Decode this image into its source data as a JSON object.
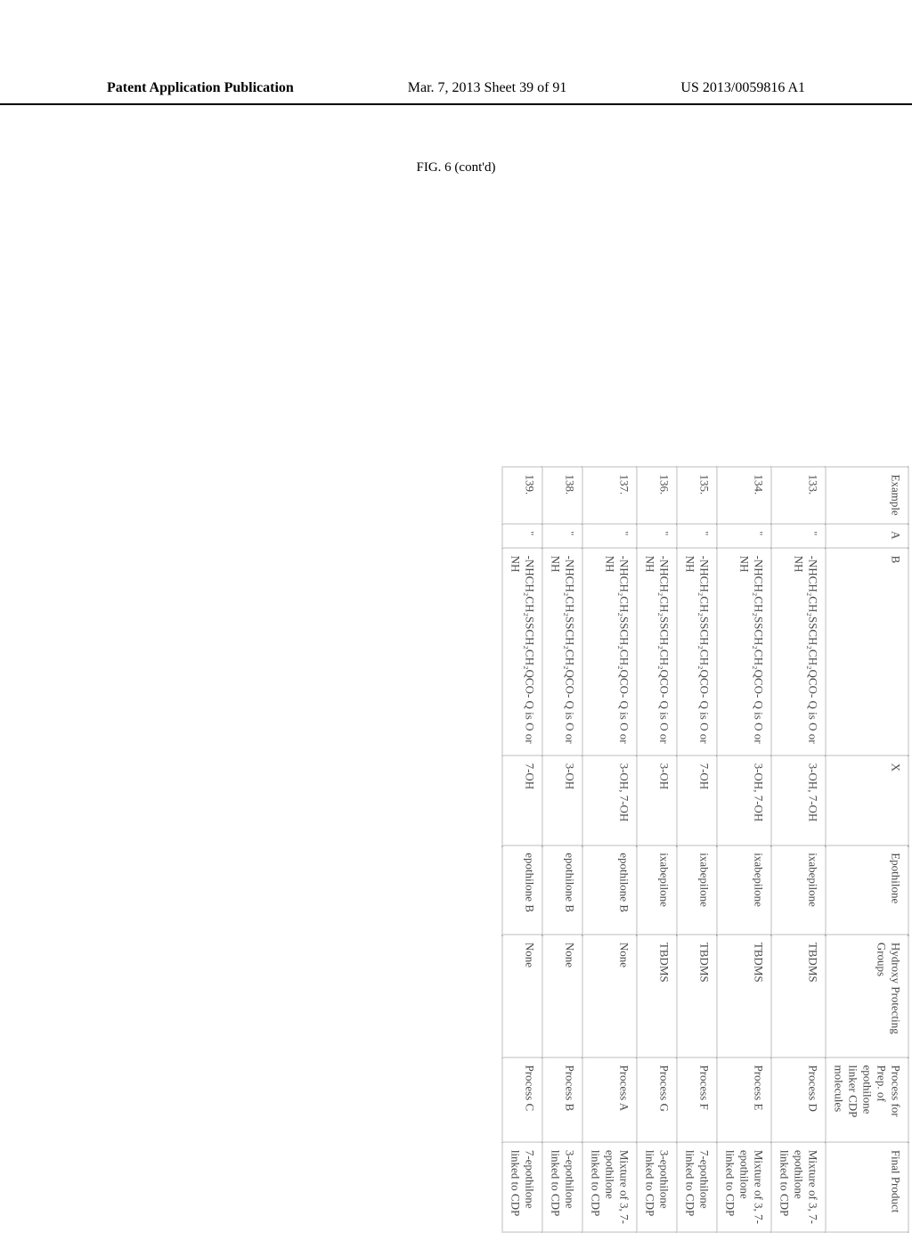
{
  "header": {
    "left": "Patent Application Publication",
    "center": "Mar. 7, 2013  Sheet 39 of 91",
    "right": "US 2013/0059816 A1"
  },
  "figure_caption": "FIG. 6 (cont'd)",
  "columns": {
    "example": "Example",
    "a": "A",
    "b": "B",
    "x": "X",
    "epothilone": "Epothilone",
    "hydroxy": "Hydroxy Protecting Groups",
    "process": "Process for Prep. of epothilone linker CDP molecules",
    "final": "Final Product"
  },
  "rows": [
    {
      "example": "133.",
      "a": "\"",
      "b": "-NHCH₂CH₂SSCH₂CH₂QCO-\nQ is O or NH",
      "x": "3-OH, 7-OH",
      "epothilone": "ixabepilone",
      "hydroxy": "TBDMS",
      "process": "Process D",
      "final": "Mixture of 3, 7-epothilone linked to CDP"
    },
    {
      "example": "134.",
      "a": "\"",
      "b": "-NHCH₂CH₂SSCH₂CH₂QCO-\nQ is O or NH",
      "x": "3-OH, 7-OH",
      "epothilone": "ixabepilone",
      "hydroxy": "TBDMS",
      "process": "Process E",
      "final": "Mixture of 3, 7-epothilone linked to CDP"
    },
    {
      "example": "135.",
      "a": "\"",
      "b": "-NHCH₂CH₂SSCH₂CH₂QCO-\nQ is O or NH",
      "x": "7-OH",
      "epothilone": "ixabepilone",
      "hydroxy": "TBDMS",
      "process": "Process F",
      "final": "7-epothilone linked to CDP"
    },
    {
      "example": "136.",
      "a": "\"",
      "b": "-NHCH₂CH₂SSCH₂CH₂QCO-\nQ is O or NH",
      "x": "3-OH",
      "epothilone": "ixabepilone",
      "hydroxy": "TBDMS",
      "process": "Process G",
      "final": "3-epothilone linked to CDP"
    },
    {
      "example": "137.",
      "a": "\"",
      "b": "-NHCH₂CH₂SSCH₂CH₂QCO-\nQ is O or NH",
      "x": "3-OH, 7-OH",
      "epothilone": "epothilone B",
      "hydroxy": "None",
      "process": "Process A",
      "final": "Mixture of 3, 7-epothilone linked to CDP"
    },
    {
      "example": "138.",
      "a": "\"",
      "b": "-NHCH₂CH₂SSCH₂CH₂QCO-\nQ is O or NH",
      "x": "3-OH",
      "epothilone": "epothilone B",
      "hydroxy": "None",
      "process": "Process B",
      "final": "3-epothilone linked to CDP"
    },
    {
      "example": "139.",
      "a": "\"",
      "b": "-NHCH₂CH₂SSCH₂CH₂QCO-\nQ is O or NH",
      "x": "7-OH",
      "epothilone": "epothilone B",
      "hydroxy": "None",
      "process": "Process C",
      "final": "7-epothilone linked to CDP"
    }
  ]
}
